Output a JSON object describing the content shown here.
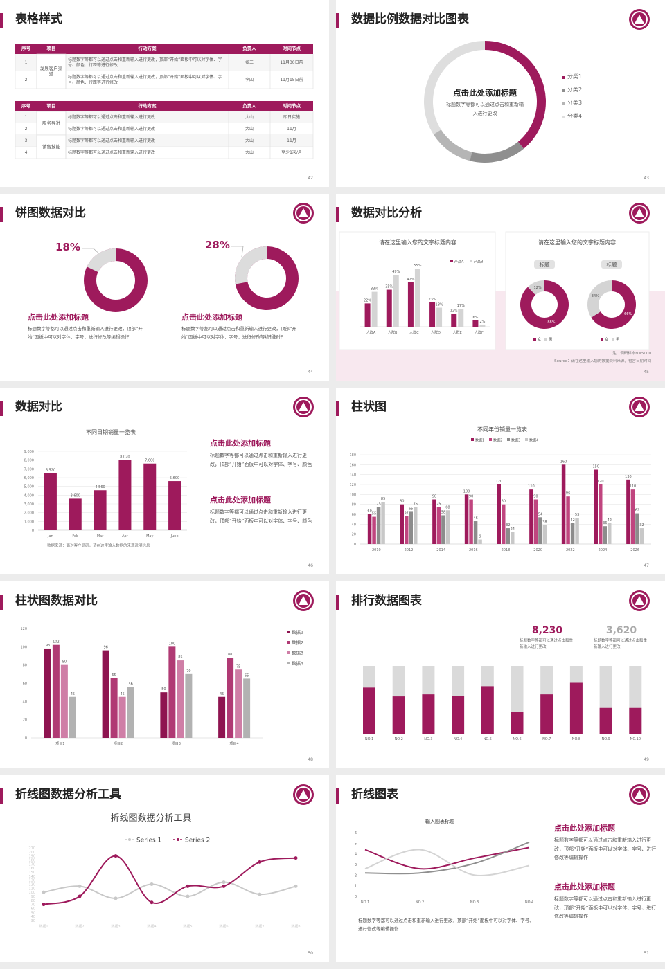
{
  "slides": [
    {
      "title": "表格样式",
      "page": "42",
      "tables": [
        {
          "header": [
            "序号",
            "项目",
            "行动方案",
            "负责人",
            "时间节点"
          ],
          "groups": [
            {
              "name": "发展客户渠道",
              "rows": [
                [
                  "1",
                  "标题数字等都可以通过点击和重新输入进行更改，顶部“开始”面板中可以对字体、字号、颜色、行距等进行修改",
                  "张三",
                  "11月30日前"
                ],
                [
                  "2",
                  "标题数字等都可以通过点击和重新输入进行更改，顶部“开始”面板中可以对字体、字号、颜色、行距等进行修改",
                  "李四",
                  "11月15日前"
                ]
              ]
            }
          ]
        },
        {
          "header": [
            "序号",
            "项目",
            "行动方案",
            "负责人",
            "时间节点"
          ],
          "groups": [
            {
              "name": "服务导进",
              "rows": [
                [
                  "1",
                  "标题数字等都可以通过点击和重新输入进行更改",
                  "大山",
                  "即日实施"
                ],
                [
                  "2",
                  "标题数字等都可以通过点击和重新输入进行更改",
                  "大山",
                  "11月"
                ]
              ]
            },
            {
              "name": "销售技能",
              "rows": [
                [
                  "3",
                  "标题数字等都可以通过点击和重新输入进行更改",
                  "大山",
                  "11月"
                ],
                [
                  "4",
                  "标题数字等都可以通过点击和重新输入进行更改",
                  "大山",
                  "至少1次/月"
                ]
              ]
            }
          ]
        }
      ]
    },
    {
      "title": "数据比例数据对比图表",
      "page": "43",
      "chart": {
        "type": "donut",
        "title": "点击此处添加标题",
        "subtitle": "标题数字等都可以通过点击和重新输入进行更改",
        "categories": [
          "分类1",
          "分类2",
          "分类3",
          "分类4"
        ],
        "values": [
          39,
          15,
          12,
          34
        ],
        "colors": [
          "#9e1a5c",
          "#8f8f8f",
          "#b5b5b5",
          "#dedede"
        ]
      }
    },
    {
      "title": "饼图数据对比",
      "page": "44",
      "charts": [
        {
          "type": "ring",
          "values": [
            18
          ],
          "value_labels": [
            "18%"
          ],
          "color": "#dcdcdc",
          "track": "#9e1a5c",
          "title": "点击此处添加标题",
          "text": "标题数字等都可以通过点击和重新输入进行更改，顶部“开始”面板中可以对字体、字号、进行修改等编辑操作"
        },
        {
          "type": "ring",
          "values": [
            28
          ],
          "value_labels": [
            "28%"
          ],
          "color": "#dcdcdc",
          "track": "#9e1a5c",
          "title": "点击此处添加标题",
          "text": "标题数字等都可以通过点击和重新输入进行更改，顶部“开始”面板中可以对字体、字号、进行修改等编辑操作"
        }
      ]
    },
    {
      "title": "数据对比分析",
      "page": "45",
      "charts": [
        {
          "type": "bar",
          "title": "请在这里输入您的文字标题内容",
          "categories": [
            "人群A",
            "人群B",
            "人群C",
            "人群D",
            "人群E",
            "人群F"
          ],
          "series": [
            {
              "name": "产品A",
              "color": "#9e1a5c",
              "values": [
                22,
                35,
                42,
                23,
                12,
                6
              ],
              "value_labels": [
                "22%",
                "35%",
                "42%",
                "23%",
                "12%",
                "6%"
              ]
            },
            {
              "name": "产品B",
              "color": "#d4d4d4",
              "values": [
                33,
                49,
                55,
                18,
                17,
                2
              ],
              "value_labels": [
                "33%",
                "49%",
                "55%",
                "18%",
                "17%",
                "2%"
              ]
            }
          ]
        },
        {
          "type": "donuts",
          "title": "请在这里输入您的文字标题内容",
          "categories": [
            "女",
            "男"
          ],
          "colors": [
            "#9e1a5c",
            "#d4d4d4"
          ],
          "items": [
            {
              "label": "标题",
              "values": [
                88,
                12
              ],
              "value_labels": [
                "88%",
                "12%"
              ]
            },
            {
              "label": "标题",
              "values": [
                66,
                34
              ],
              "value_labels": [
                "66%",
                "34%"
              ]
            }
          ]
        }
      ],
      "notes": [
        "注：调研样本N=5000",
        "Source：请在这里输入您的数据资料来源，包含日期时间"
      ]
    },
    {
      "title": "数据对比",
      "page": "46",
      "chart": {
        "type": "bar",
        "title": "不同日期销量一览表",
        "categories": [
          "Jan",
          "Feb",
          "Mar",
          "Apr",
          "May",
          "June"
        ],
        "values": [
          6520,
          3600,
          4560,
          8020,
          7600,
          5600
        ],
        "value_labels": [
          "6,520",
          "3,600",
          "4,560",
          "8,020",
          "7,600",
          "5,600"
        ],
        "color": "#9e1a5c",
        "ylim": [
          0,
          9000
        ],
        "yticks": [
          0,
          {
            "value": 1000,
            "label": "1,000"
          },
          {
            "value": 2000,
            "label": "2,000"
          },
          {
            "value": 3000,
            "label": "3,000"
          },
          {
            "value": 4000,
            "label": "4,000"
          },
          {
            "value": 5000,
            "label": "5,000"
          },
          {
            "value": 6000,
            "label": "6,000"
          },
          {
            "value": 7000,
            "label": "7,000"
          },
          {
            "value": 8000,
            "label": "8,000"
          },
          {
            "value": 9000,
            "label": "9,000"
          }
        ],
        "grid": true,
        "note": "数据来源：面对客户调研，请在这里输入数据的来源说明信息"
      },
      "blocks": [
        {
          "title": "点击此处添加标题",
          "text": "标题数字等都可以通过点击和重新输入进行更改，顶部“开始”面板中可以对字体、字号、颜色"
        },
        {
          "title": "点击此处添加标题",
          "text": "标题数字等都可以通过点击和重新输入进行更改，顶部“开始”面板中可以对字体、字号、颜色"
        }
      ]
    },
    {
      "title": "柱状图",
      "page": "47",
      "chart": {
        "type": "bar",
        "title": "不同年份销量一览表",
        "categories": [
          "2010",
          "2012",
          "2014",
          "2016",
          "2018",
          "2020",
          "2022",
          "2024",
          "2026"
        ],
        "series": [
          {
            "name": "数据1",
            "color": "#9e1a5c",
            "values": [
              60,
              80,
              90,
              100,
              120,
              110,
              160,
              150,
              130
            ]
          },
          {
            "name": "数据2",
            "color": "#c0457f",
            "values": [
              55,
              57,
              75,
              90,
              80,
              90,
              96,
              120,
              110
            ]
          },
          {
            "name": "数据3",
            "color": "#8c8c8c",
            "values": [
              75,
              65,
              58,
              46,
              32,
              54,
              42,
              36,
              62
            ]
          },
          {
            "name": "数据4",
            "color": "#c8c8c8",
            "values": [
              85,
              75,
              68,
              9,
              24,
              38,
              53,
              42,
              32
            ]
          }
        ],
        "ylim": [
          0,
          180
        ],
        "yticks": [
          0,
          20,
          40,
          60,
          80,
          100,
          120,
          140,
          160,
          180
        ],
        "grid": true
      }
    },
    {
      "title": "柱状图数据对比",
      "page": "48",
      "chart": {
        "type": "bar",
        "categories": [
          "项目1",
          "项目2",
          "项目3",
          "项目4"
        ],
        "series": [
          {
            "name": "数据1",
            "color": "#8e1450",
            "values": [
              98,
              96,
              50,
              45
            ]
          },
          {
            "name": "数据2",
            "color": "#b03a74",
            "values": [
              102,
              66,
              100,
              88
            ]
          },
          {
            "name": "数据3",
            "color": "#cf7ea6",
            "values": [
              80,
              45,
              85,
              75
            ]
          },
          {
            "name": "数据4",
            "color": "#b2b2b2",
            "values": [
              45,
              56,
              70,
              65
            ]
          }
        ],
        "ylim": [
          0,
          120
        ],
        "yticks": [
          0,
          20,
          40,
          60,
          80,
          100,
          120
        ],
        "grid": false
      }
    },
    {
      "title": "排行数据图表",
      "page": "49",
      "stats": [
        {
          "value": "8,230",
          "text": "标题数字等都可以通过点击和重新输入进行更改"
        },
        {
          "value": "3,620",
          "text": "标题数字等都可以通过点击和重新输入进行更改"
        }
      ],
      "chart": {
        "type": "stacked",
        "categories": [
          "NO.1",
          "NO.2",
          "NO.3",
          "NO.4",
          "NO.5",
          "NO.6",
          "NO.7",
          "NO.8",
          "NO.9",
          "NO.10"
        ],
        "values": [
          68,
          55,
          58,
          56,
          70,
          32,
          58,
          75,
          38,
          38
        ],
        "color": "#9e1a5c",
        "track": "#dadada",
        "ylim": [
          0,
          100
        ]
      }
    },
    {
      "title": "折线图数据分析工具",
      "page": "50",
      "chart": {
        "type": "line",
        "title": "折线图数据分析工具",
        "categories": [
          "数据1",
          "数据2",
          "数据3",
          "数据4",
          "数据5",
          "数据6",
          "数据7",
          "数据8"
        ],
        "series": [
          {
            "name": "Series 1",
            "color": "#c8c8c8",
            "values": [
              100,
              115,
              85,
              120,
              90,
              125,
              95,
              115
            ]
          },
          {
            "name": "Series 2",
            "color": "#9e1a5c",
            "values": [
              70,
              90,
              190,
              75,
              115,
              115,
              175,
              185
            ]
          }
        ],
        "ylim": [
          30,
          210
        ],
        "yticks": [
          30,
          40,
          50,
          60,
          70,
          80,
          90,
          100,
          110,
          120,
          130,
          140,
          150,
          160,
          170,
          180,
          190,
          200,
          210
        ],
        "grid": false
      }
    },
    {
      "title": "折线图表",
      "page": "51",
      "chart": {
        "type": "line",
        "title": "输入图表标题",
        "categories": [
          "NO.1",
          "NO.2",
          "NO.3",
          "NO.4"
        ],
        "series": [
          {
            "color": "#9e1a5c",
            "values": [
              4.4,
              2.6,
              3.6,
              4.6
            ]
          },
          {
            "color": "#8f8f8f",
            "values": [
              2.2,
              2.2,
              3.1,
              5.1
            ]
          },
          {
            "color": "#d4d4d4",
            "values": [
              2.6,
              4.4,
              2.0,
              2.9
            ]
          }
        ],
        "ylim": [
          0,
          6
        ],
        "yticks": [
          0,
          1,
          2,
          3,
          4,
          5,
          6
        ],
        "grid": false,
        "note": "标题数字等都可以通过点击和重新输入进行更改，顶部“开始”面板中可以对字体、字号、进行修改等编辑操作"
      },
      "blocks": [
        {
          "title": "点击此处添加标题",
          "text": "标题数字等都可以通过点击和重新输入进行更改，顶部“开始”面板中可以对字体、字号、进行修改等编辑操作"
        },
        {
          "title": "点击此处添加标题",
          "text": "标题数字等都可以通过点击和重新输入进行更改，顶部“开始”面板中可以对字体、字号、进行修改等编辑操作"
        }
      ]
    }
  ]
}
